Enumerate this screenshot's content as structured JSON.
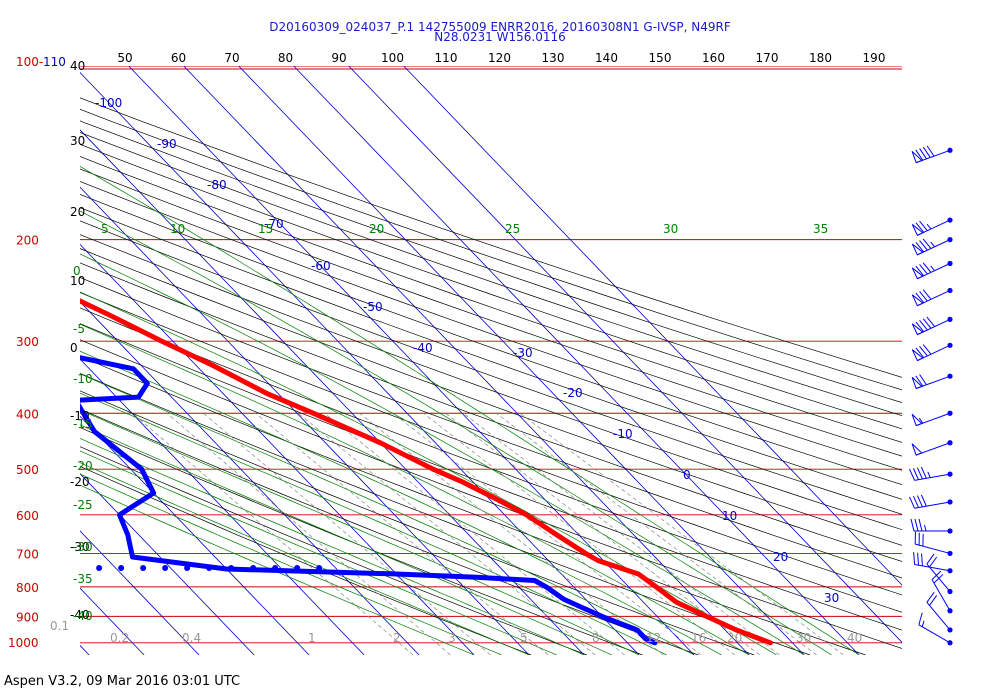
{
  "header": {
    "line1": "D20160309_024037_P.1 142755009 ENRR2016, 20160308N1 G-IVSP, N49RF",
    "line2": "N28.0231 W156.0116"
  },
  "footer": "Aspen V3.2, 09 Mar 2016  03:01 UTC",
  "colors": {
    "temperature": "#ff0000",
    "dewpoint": "#0000ff",
    "isobar": "#cc0000",
    "isotherm": "#0000cc",
    "dry_adiabat": "#000000",
    "mixing_ratio": "#008000"
  },
  "chart_data": {
    "type": "skew-t",
    "pressure_axis": {
      "ticks": [
        "100-110",
        "200",
        "300",
        "400",
        "500",
        "600",
        "700",
        "800",
        "900",
        "1000"
      ]
    },
    "height_kft_axis": {
      "ticks": [
        "40",
        "30",
        "20",
        "10",
        "0",
        "-10",
        "-20",
        "-30",
        "-40"
      ]
    },
    "isotherm_labels": [
      "-100",
      "-90",
      "-80",
      "-70",
      "-60",
      "-50",
      "-40",
      "-30",
      "-20",
      "-10",
      "0",
      "10",
      "20",
      "30"
    ],
    "theta_top_labels": [
      "50",
      "60",
      "70",
      "80",
      "90",
      "100",
      "110",
      "120",
      "130",
      "140",
      "150",
      "160",
      "170",
      "180",
      "190"
    ],
    "theta_e_labels": [
      "5",
      "10",
      "15",
      "20",
      "25",
      "30",
      "35"
    ],
    "left_green_labels": [
      "0",
      "-5",
      "-10",
      "-15",
      "-20",
      "-25",
      "-30",
      "-35",
      "-40"
    ],
    "mixing_ratio_labels": [
      "0.1",
      "0.2",
      "0.4",
      "1",
      "2",
      "3",
      "5",
      "8",
      "12",
      "16",
      "20",
      "30",
      "40"
    ],
    "temperature": [
      [
        1000,
        26
      ],
      [
        950,
        22
      ],
      [
        900,
        19
      ],
      [
        850,
        16
      ],
      [
        800,
        15
      ],
      [
        760,
        14
      ],
      [
        720,
        9
      ],
      [
        700,
        8
      ],
      [
        650,
        6
      ],
      [
        600,
        4
      ],
      [
        560,
        1
      ],
      [
        525,
        -2
      ],
      [
        500,
        -5
      ],
      [
        450,
        -10
      ],
      [
        400,
        -17
      ],
      [
        370,
        -22
      ],
      [
        330,
        -27
      ],
      [
        300,
        -32
      ],
      [
        270,
        -37
      ],
      [
        250,
        -41
      ],
      [
        225,
        -46
      ],
      [
        200,
        -51
      ],
      [
        180,
        -54
      ],
      [
        165,
        -56
      ],
      [
        150,
        -59
      ],
      [
        135,
        -62
      ]
    ],
    "dewpoint": [
      [
        1000,
        5
      ],
      [
        985,
        4
      ],
      [
        950,
        4
      ],
      [
        925,
        2
      ],
      [
        900,
        0
      ],
      [
        870,
        -2
      ],
      [
        840,
        -4
      ],
      [
        800,
        -5
      ],
      [
        780,
        -6
      ],
      [
        770,
        -16
      ],
      [
        760,
        -30
      ],
      [
        745,
        -60
      ],
      [
        710,
        -75
      ],
      [
        650,
        -72
      ],
      [
        600,
        -70
      ],
      [
        550,
        -60
      ],
      [
        500,
        -58
      ],
      [
        430,
        -60
      ],
      [
        380,
        -58
      ],
      [
        375,
        -46
      ],
      [
        355,
        -42
      ],
      [
        335,
        -42
      ],
      [
        320,
        -50
      ],
      [
        305,
        -55
      ],
      [
        280,
        -53
      ],
      [
        255,
        -55
      ],
      [
        240,
        -60
      ],
      [
        215,
        -66
      ],
      [
        200,
        -68
      ],
      [
        185,
        -71
      ]
    ],
    "wind_barbs": [
      {
        "p": 140,
        "dir": 250,
        "kt": 90
      },
      {
        "p": 185,
        "dir": 245,
        "kt": 75
      },
      {
        "p": 200,
        "dir": 245,
        "kt": 85
      },
      {
        "p": 220,
        "dir": 245,
        "kt": 85
      },
      {
        "p": 245,
        "dir": 245,
        "kt": 80
      },
      {
        "p": 275,
        "dir": 245,
        "kt": 90
      },
      {
        "p": 305,
        "dir": 245,
        "kt": 80
      },
      {
        "p": 345,
        "dir": 250,
        "kt": 70
      },
      {
        "p": 400,
        "dir": 250,
        "kt": 55
      },
      {
        "p": 450,
        "dir": 250,
        "kt": 50
      },
      {
        "p": 510,
        "dir": 260,
        "kt": 45
      },
      {
        "p": 570,
        "dir": 260,
        "kt": 40
      },
      {
        "p": 640,
        "dir": 270,
        "kt": 35
      },
      {
        "p": 700,
        "dir": 285,
        "kt": 30
      },
      {
        "p": 750,
        "dir": 280,
        "kt": 30
      },
      {
        "p": 815,
        "dir": 320,
        "kt": 20
      },
      {
        "p": 880,
        "dir": 330,
        "kt": 20
      },
      {
        "p": 950,
        "dir": 320,
        "kt": 20
      },
      {
        "p": 1000,
        "dir": 300,
        "kt": 15
      }
    ]
  }
}
